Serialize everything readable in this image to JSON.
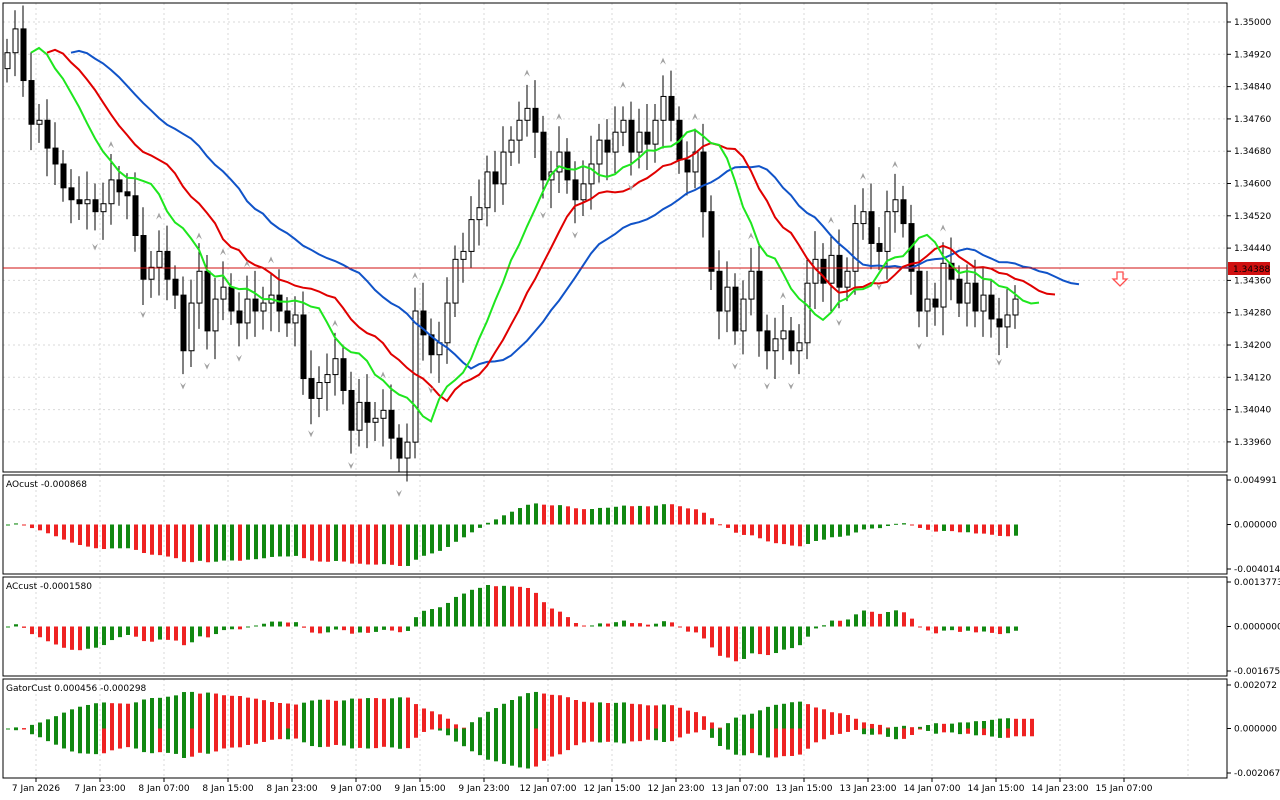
{
  "colors": {
    "background": "#ffffff",
    "grid": "#d9d9d9",
    "candle": "#000000",
    "jaw": "#1053c8",
    "teeth": "#e00000",
    "lips": "#1ee61e",
    "bid_line": "#d01010",
    "bid_label_bg": "#d01010",
    "osc_up": "#118811",
    "osc_down": "#ee2222",
    "fractal": "#a0a0a0",
    "signal_arrow": "#ff5050"
  },
  "price_pane": {
    "current_price_label": "1.34388",
    "price_ticks": [
      "1.35000",
      "1.34920",
      "1.34840",
      "1.34760",
      "1.34680",
      "1.34600",
      "1.34520",
      "1.34440",
      "1.34360",
      "1.34280",
      "1.34200",
      "1.34120",
      "1.34040",
      "1.33960"
    ],
    "signal_icon": "down-arrow-icon"
  },
  "ao_pane": {
    "title": "AOcust -0.000868",
    "ticks": [
      "0.004991",
      "0.000000",
      "-0.004014"
    ]
  },
  "ac_pane": {
    "title": "ACcust -0.0001580",
    "ticks": [
      "0.0013773",
      "0.0000000",
      "-0.0016756"
    ]
  },
  "gator_pane": {
    "title": "GatorCust 0.000456 -0.000298",
    "ticks": [
      "0.002072",
      "0.000000",
      "-0.002067"
    ]
  },
  "time_labels": [
    "7 Jan 2026",
    "7 Jan 23:00",
    "8 Jan 07:00",
    "8 Jan 15:00",
    "8 Jan 23:00",
    "9 Jan 07:00",
    "9 Jan 15:00",
    "9 Jan 23:00",
    "12 Jan 07:00",
    "12 Jan 15:00",
    "12 Jan 23:00",
    "13 Jan 07:00",
    "13 Jan 15:00",
    "13 Jan 23:00",
    "14 Jan 07:00",
    "14 Jan 15:00",
    "14 Jan 23:00",
    "15 Jan 07:00"
  ],
  "chart_data": {
    "type": "candlestick",
    "symbol_price_range": [
      1.3392,
      1.3505
    ],
    "current_price": 1.34388,
    "candles_close": [
      1.3495,
      1.3501,
      1.3488,
      1.3477,
      1.3478,
      1.3471,
      1.3467,
      1.3461,
      1.3458,
      1.3457,
      1.3458,
      1.3455,
      1.3457,
      1.3463,
      1.346,
      1.3459,
      1.3449,
      1.3438,
      1.3441,
      1.3445,
      1.3438,
      1.3434,
      1.342,
      1.3432,
      1.344,
      1.3425,
      1.3433,
      1.3436,
      1.343,
      1.3427,
      1.3433,
      1.343,
      1.3432,
      1.3434,
      1.343,
      1.3427,
      1.3429,
      1.3413,
      1.3408,
      1.3412,
      1.3414,
      1.3418,
      1.341,
      1.34,
      1.3407,
      1.3402,
      1.3403,
      1.3405,
      1.3398,
      1.3393,
      1.3397,
      1.343,
      1.3424,
      1.3419,
      1.3422,
      1.3432,
      1.3443,
      1.3445,
      1.3453,
      1.3456,
      1.3465,
      1.3462,
      1.347,
      1.3473,
      1.3478,
      1.3481,
      1.3475,
      1.3463,
      1.3465,
      1.347,
      1.3463,
      1.3458,
      1.3462,
      1.3467,
      1.3473,
      1.347,
      1.3475,
      1.3478,
      1.347,
      1.3475,
      1.3472,
      1.3478,
      1.3484,
      1.3478,
      1.3468,
      1.3465,
      1.347,
      1.3455,
      1.344,
      1.343,
      1.3436,
      1.3425,
      1.3433,
      1.344,
      1.3425,
      1.342,
      1.3423,
      1.3425,
      1.342,
      1.3422,
      1.3437,
      1.3443,
      1.3437,
      1.3444,
      1.3436,
      1.344,
      1.3452,
      1.3455,
      1.3447,
      1.3445,
      1.3455,
      1.3458,
      1.3452,
      1.344,
      1.343,
      1.3433,
      1.3431,
      1.3442,
      1.3438,
      1.3432,
      1.3437,
      1.343,
      1.3434,
      1.3428,
      1.3426,
      1.3429,
      1.3433
    ],
    "alligator": {
      "jaw_color_name": "blue",
      "teeth_color_name": "red",
      "lips_color_name": "green"
    },
    "indicators": [
      "AOcust",
      "ACcust",
      "GatorCust"
    ]
  }
}
